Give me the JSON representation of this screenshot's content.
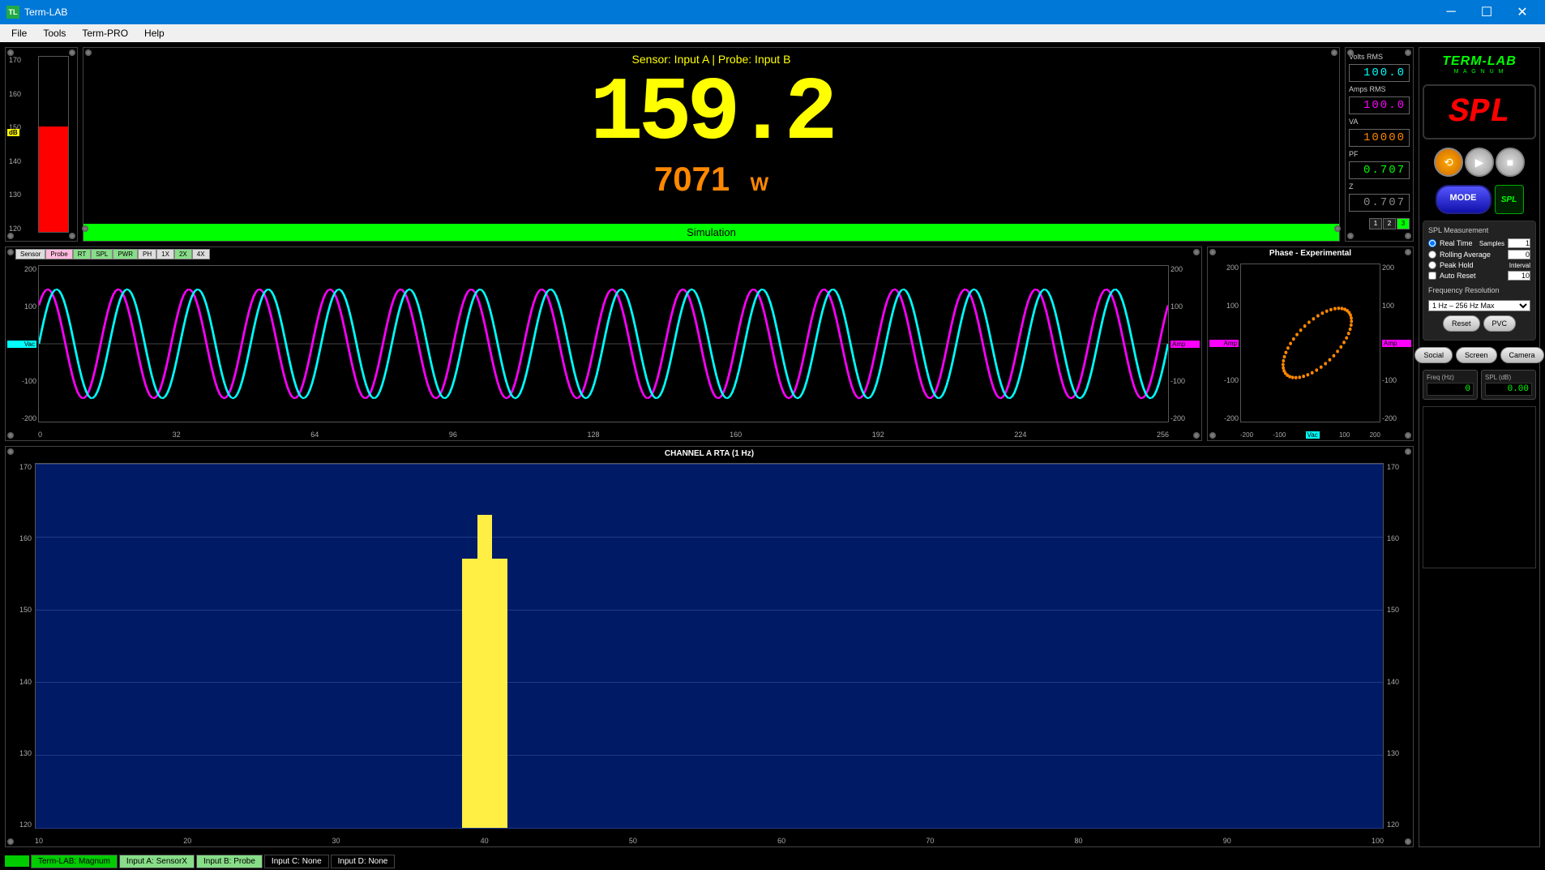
{
  "window": {
    "title": "Term-LAB",
    "icon_text": "TL"
  },
  "menu": {
    "items": [
      "File",
      "Tools",
      "Term-PRO",
      "Help"
    ]
  },
  "db_meter": {
    "scale": [
      170,
      160,
      150,
      140,
      130,
      120
    ],
    "indicator_label": "dB",
    "bar_color": "#ff0000",
    "bar_fill_percent": 60
  },
  "main_display": {
    "sensor_label": "Sensor: Input A | Probe: Input B",
    "big_value": "159.2",
    "watts_value": "7071",
    "watts_unit": "W",
    "sim_label": "Simulation",
    "big_color": "#ffff00",
    "watts_color": "#ff8800"
  },
  "readouts": {
    "items": [
      {
        "label": "Volts RMS",
        "value": "100.0",
        "color": "cyan"
      },
      {
        "label": "Amps RMS",
        "value": "100.0",
        "color": "magenta"
      },
      {
        "label": "VA",
        "value": "10000",
        "color": "orange"
      },
      {
        "label": "PF",
        "value": "0.707",
        "color": "green"
      },
      {
        "label": "Z",
        "value": "0.707",
        "color": "gray"
      }
    ],
    "tabs": [
      "1",
      "2",
      "3"
    ],
    "active_tab": 2
  },
  "scope": {
    "tools": [
      {
        "label": "Sensor",
        "cls": ""
      },
      {
        "label": "Probe",
        "cls": "pink"
      },
      {
        "label": "RT",
        "cls": "green"
      },
      {
        "label": "SPL",
        "cls": "green"
      },
      {
        "label": "PWR",
        "cls": "green"
      },
      {
        "label": "PH",
        "cls": ""
      },
      {
        "label": "1X",
        "cls": ""
      },
      {
        "label": "2X",
        "cls": "green"
      },
      {
        "label": "4X",
        "cls": ""
      }
    ],
    "y_scale": [
      200,
      100,
      0,
      -100,
      -200
    ],
    "x_scale": [
      0,
      32,
      64,
      96,
      128,
      160,
      192,
      224,
      256
    ],
    "y_label_left": "Vac",
    "y_label_right": "Amp",
    "wave_cycles": 16,
    "wave_amplitude": 0.7,
    "wave1_color": "#00ffff",
    "wave2_color": "#ff00ff",
    "phase_offset_deg": 45
  },
  "phase": {
    "title": "Phase - Experimental",
    "y_scale": [
      200,
      100,
      0,
      -100,
      -200
    ],
    "x_scale": [
      -200,
      -100,
      0,
      100,
      200
    ],
    "y_label_left": "Amp",
    "y_label_right": "Amp",
    "x_label": "Vac",
    "ellipse_color": "#ff8800",
    "ellipse_points": 48,
    "ellipse_rx": 0.75,
    "ellipse_ry": 0.35,
    "ellipse_rotation_deg": 40
  },
  "rta": {
    "title": "CHANNEL A RTA (1 Hz)",
    "y_scale": [
      170,
      160,
      150,
      140,
      130,
      120
    ],
    "x_scale": [
      10,
      20,
      30,
      40,
      50,
      60,
      70,
      80,
      90,
      100
    ],
    "bars": [
      {
        "x": 39,
        "value": 157
      },
      {
        "x": 40,
        "value": 163
      },
      {
        "x": 41,
        "value": 157
      }
    ],
    "bar_color": "#ffee44",
    "bg_color": "#001a66",
    "grid_color": "#223a88"
  },
  "brand": {
    "name": "TERM-LAB",
    "sub": "M A G N U M"
  },
  "spl_indicator": {
    "text": "SPL",
    "color": "#ff0000"
  },
  "mode_button": {
    "label": "MODE"
  },
  "spl_badge": {
    "label": "SPL"
  },
  "settings": {
    "title": "SPL Measurement",
    "radios": [
      {
        "label": "Real Time",
        "side_label": "Samples",
        "value": "1",
        "checked": true
      },
      {
        "label": "Rolling Average",
        "side_label": "",
        "value": "0",
        "checked": false
      },
      {
        "label": "Peak Hold",
        "side_label": "Interval",
        "value": "",
        "checked": false
      }
    ],
    "auto_reset": {
      "label": "Auto Reset",
      "value": "10",
      "checked": false
    },
    "freq_res_label": "Frequency Resolution",
    "freq_res_value": "1 Hz – 256 Hz Max",
    "buttons": [
      "Reset",
      "PVC"
    ],
    "share_buttons": [
      "Social",
      "Screen",
      "Camera"
    ]
  },
  "freq_spl": {
    "freq_label": "Freq (Hz)",
    "freq_value": "0",
    "spl_label": "SPL (dB)",
    "spl_value": "0.00"
  },
  "statusbar": {
    "items": [
      {
        "label": "Term-LAB: Magnum",
        "cls": "green"
      },
      {
        "label": "Input A: SensorX",
        "cls": "lgreen"
      },
      {
        "label": "Input B: Probe",
        "cls": "lgreen"
      },
      {
        "label": "Input C: None",
        "cls": ""
      },
      {
        "label": "Input D: None",
        "cls": ""
      }
    ]
  }
}
